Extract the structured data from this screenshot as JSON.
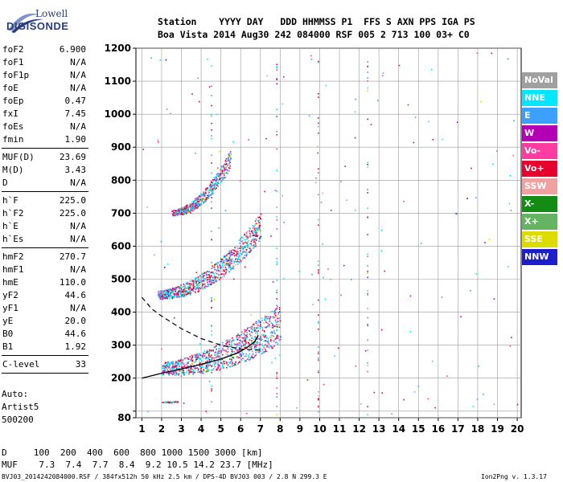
{
  "logo": {
    "line1": "Lowell",
    "line2": "DIGISONDE"
  },
  "header": {
    "labels": "Station    YYYY DAY   DDD HHMMSS P1  FFS S AXN PPS IGA PS",
    "values": "Boa Vista 2014 Aug30 242 084000 RSF 005 2 713 100 03+ C0"
  },
  "params": {
    "group1": [
      {
        "name": "foF2",
        "value": "6.900"
      },
      {
        "name": "foF1",
        "value": "N/A"
      },
      {
        "name": "foF1p",
        "value": "N/A"
      },
      {
        "name": "foE",
        "value": "N/A"
      },
      {
        "name": "foEp",
        "value": "0.47"
      },
      {
        "name": "fxI",
        "value": "7.45"
      },
      {
        "name": "foEs",
        "value": "N/A"
      },
      {
        "name": "fmin",
        "value": "1.90"
      }
    ],
    "group2": [
      {
        "name": "MUF(D)",
        "value": "23.69"
      },
      {
        "name": "M(D)",
        "value": "3.43"
      },
      {
        "name": "D",
        "value": "N/A"
      }
    ],
    "group3": [
      {
        "name": "h`F",
        "value": "225.0"
      },
      {
        "name": "h`F2",
        "value": "225.0"
      },
      {
        "name": "h`E",
        "value": "N/A"
      },
      {
        "name": "h`Es",
        "value": "N/A"
      }
    ],
    "group4": [
      {
        "name": "hmF2",
        "value": "270.7"
      },
      {
        "name": "hmF1",
        "value": "N/A"
      },
      {
        "name": "hmE",
        "value": "110.0"
      },
      {
        "name": "yF2",
        "value": "44.6"
      },
      {
        "name": "yF1",
        "value": "N/A"
      },
      {
        "name": "yE",
        "value": "20.0"
      },
      {
        "name": "B0",
        "value": "44.6"
      },
      {
        "name": "B1",
        "value": "1.92"
      }
    ],
    "group5": [
      {
        "name": "C-level",
        "value": "33"
      }
    ]
  },
  "auto": {
    "line1": "Auto:",
    "line2": "Artist5",
    "line3": "500200"
  },
  "footer": {
    "d_row": "D     100  200  400  600  800 1000 1500 3000 [km]",
    "muf_row": "MUF    7.3  7.4  7.7  8.4  9.2 10.5 14.2 23.7 [MHz]",
    "file_info": "BVJ03_2014242084000.RSF / 384fx512h 50 kHz 2.5 km / DPS-4D BVJ03 003 / 2.8 N 299.3 E",
    "version": "Ion2Png v. 1.3.17"
  },
  "legend": [
    {
      "label": "NoVal",
      "color": "#a0a0a0"
    },
    {
      "label": "NNE",
      "color": "#00e6ff"
    },
    {
      "label": "E",
      "color": "#3ca0ff"
    },
    {
      "label": "W",
      "color": "#b400b4"
    },
    {
      "label": "Vo-",
      "color": "#ff3ca0"
    },
    {
      "label": "Vo+",
      "color": "#e6002d"
    },
    {
      "label": "SSW",
      "color": "#f0a0a0"
    },
    {
      "label": "X-",
      "color": "#148c14"
    },
    {
      "label": "X+",
      "color": "#64b464"
    },
    {
      "label": "SSE",
      "color": "#dcdc00"
    },
    {
      "label": "NNW",
      "color": "#1e1ec8"
    }
  ],
  "chart_data": {
    "type": "scatter",
    "xlim": [
      0.7,
      20.2
    ],
    "ylim": [
      80,
      1200
    ],
    "x_ticks": [
      1,
      2,
      3,
      4,
      5,
      6,
      7,
      8,
      9,
      10,
      11,
      12,
      13,
      14,
      15,
      16,
      17,
      18,
      19,
      20
    ],
    "y_ticks": [
      80,
      100,
      200,
      300,
      400,
      500,
      600,
      700,
      800,
      900,
      1000,
      1100,
      1200
    ],
    "y_tick_labels": [
      "80",
      "",
      "200",
      "300",
      "400",
      "500",
      "600",
      "700",
      "800",
      "900",
      "1000",
      "1100",
      "1200"
    ],
    "grid": true,
    "bands": [
      {
        "name": "F2 first hop",
        "x_start": 2.0,
        "x_end": 8.0,
        "y_start": 225,
        "y_end": 350,
        "spread": 90
      },
      {
        "name": "F2 second hop",
        "x_start": 1.8,
        "x_end": 7.0,
        "y_start": 450,
        "y_end": 650,
        "spread": 60
      },
      {
        "name": "F2 third hop",
        "x_start": 2.5,
        "x_end": 5.5,
        "y_start": 700,
        "y_end": 860,
        "spread": 40
      },
      {
        "name": "Es echo",
        "x_start": 2.0,
        "x_end": 2.8,
        "y_start": 128,
        "y_end": 128,
        "spread": 4
      }
    ],
    "profile_solid": [
      [
        1.0,
        200
      ],
      [
        2.0,
        215
      ],
      [
        3.0,
        228
      ],
      [
        4.0,
        242
      ],
      [
        5.0,
        258
      ],
      [
        5.8,
        275
      ],
      [
        6.3,
        292
      ],
      [
        6.7,
        310
      ],
      [
        6.9,
        330
      ]
    ],
    "profile_dashed": [
      [
        1.0,
        445
      ],
      [
        1.5,
        410
      ],
      [
        2.0,
        388
      ],
      [
        3.0,
        350
      ],
      [
        4.0,
        320
      ],
      [
        5.0,
        300
      ],
      [
        6.0,
        288
      ],
      [
        7.0,
        285
      ]
    ]
  }
}
